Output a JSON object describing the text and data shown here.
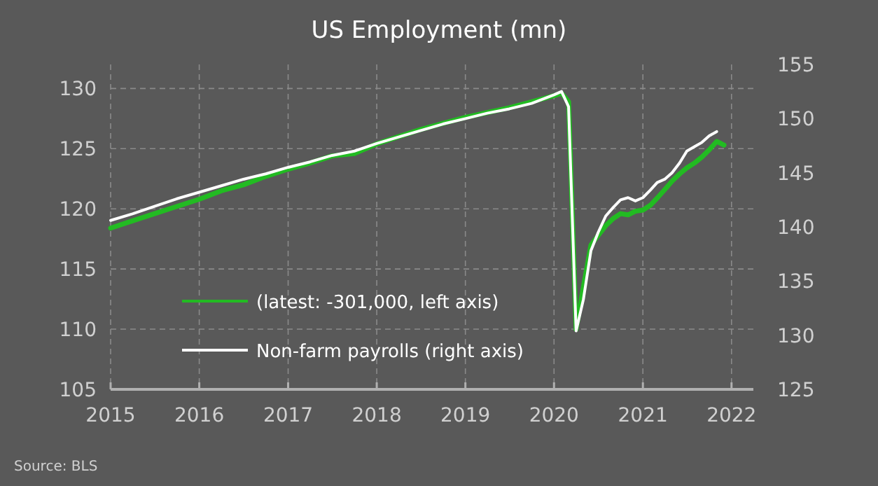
{
  "chart_data": {
    "type": "line",
    "title": "US Employment (mn)",
    "annotations": [
      "Source:  BLS"
    ],
    "x": [
      "2015-01",
      "2015-04",
      "2015-07",
      "2015-10",
      "2016-01",
      "2016-04",
      "2016-07",
      "2016-10",
      "2017-01",
      "2017-04",
      "2017-07",
      "2017-10",
      "2018-01",
      "2018-04",
      "2018-07",
      "2018-10",
      "2019-01",
      "2019-04",
      "2019-07",
      "2019-10",
      "2020-01",
      "2020-02",
      "2020-03",
      "2020-04",
      "2020-05",
      "2020-06",
      "2020-07",
      "2020-08",
      "2020-09",
      "2020-10",
      "2020-11",
      "2020-12",
      "2021-01",
      "2021-02",
      "2021-03",
      "2021-04",
      "2021-05",
      "2021-06",
      "2021-07",
      "2021-08",
      "2021-09",
      "2021-10",
      "2021-11",
      "2021-12"
    ],
    "series": [
      {
        "name": "(latest: -301,000, left axis)",
        "color": "#22bb22",
        "values": [
          118.4,
          119.0,
          119.6,
          120.2,
          120.8,
          121.5,
          122.0,
          122.7,
          123.3,
          123.8,
          124.4,
          124.6,
          125.4,
          126.0,
          126.6,
          127.1,
          127.6,
          128.0,
          128.4,
          128.9,
          129.4,
          129.6,
          128.9,
          110.0,
          113.5,
          117.0,
          117.8,
          118.6,
          119.2,
          119.6,
          119.5,
          119.8,
          119.9,
          120.3,
          120.9,
          121.6,
          122.3,
          122.9,
          123.4,
          123.8,
          124.3,
          124.9,
          125.6,
          125.3
        ]
      },
      {
        "name": "Non-farm payrolls (right axis)",
        "color": "#ffffff",
        "axis": "y2",
        "values": [
          140.6,
          141.2,
          141.9,
          142.6,
          143.2,
          143.8,
          144.4,
          144.9,
          145.5,
          146.0,
          146.6,
          147.0,
          147.7,
          148.3,
          148.9,
          149.5,
          150.0,
          150.5,
          150.9,
          151.4,
          152.2,
          152.5,
          151.1,
          130.4,
          133.3,
          137.8,
          139.5,
          141.0,
          141.8,
          142.5,
          142.7,
          142.4,
          142.7,
          143.4,
          144.1,
          144.4,
          145.0,
          145.9,
          147.0,
          147.4,
          147.8,
          148.4,
          148.8,
          null
        ]
      }
    ],
    "xlim": [
      "2015-01",
      "2022-04"
    ],
    "xticks": [
      "2015",
      "2016",
      "2017",
      "2018",
      "2019",
      "2020",
      "2021",
      "2022"
    ],
    "ylim": [
      105,
      132
    ],
    "yticks": [
      105,
      110,
      115,
      120,
      125,
      130
    ],
    "y2lim": [
      125,
      155
    ],
    "y2ticks": [
      125,
      130,
      135,
      140,
      145,
      150,
      155
    ],
    "grid": true,
    "legend": "bottom left",
    "line_style": "solid",
    "marker": "none"
  }
}
